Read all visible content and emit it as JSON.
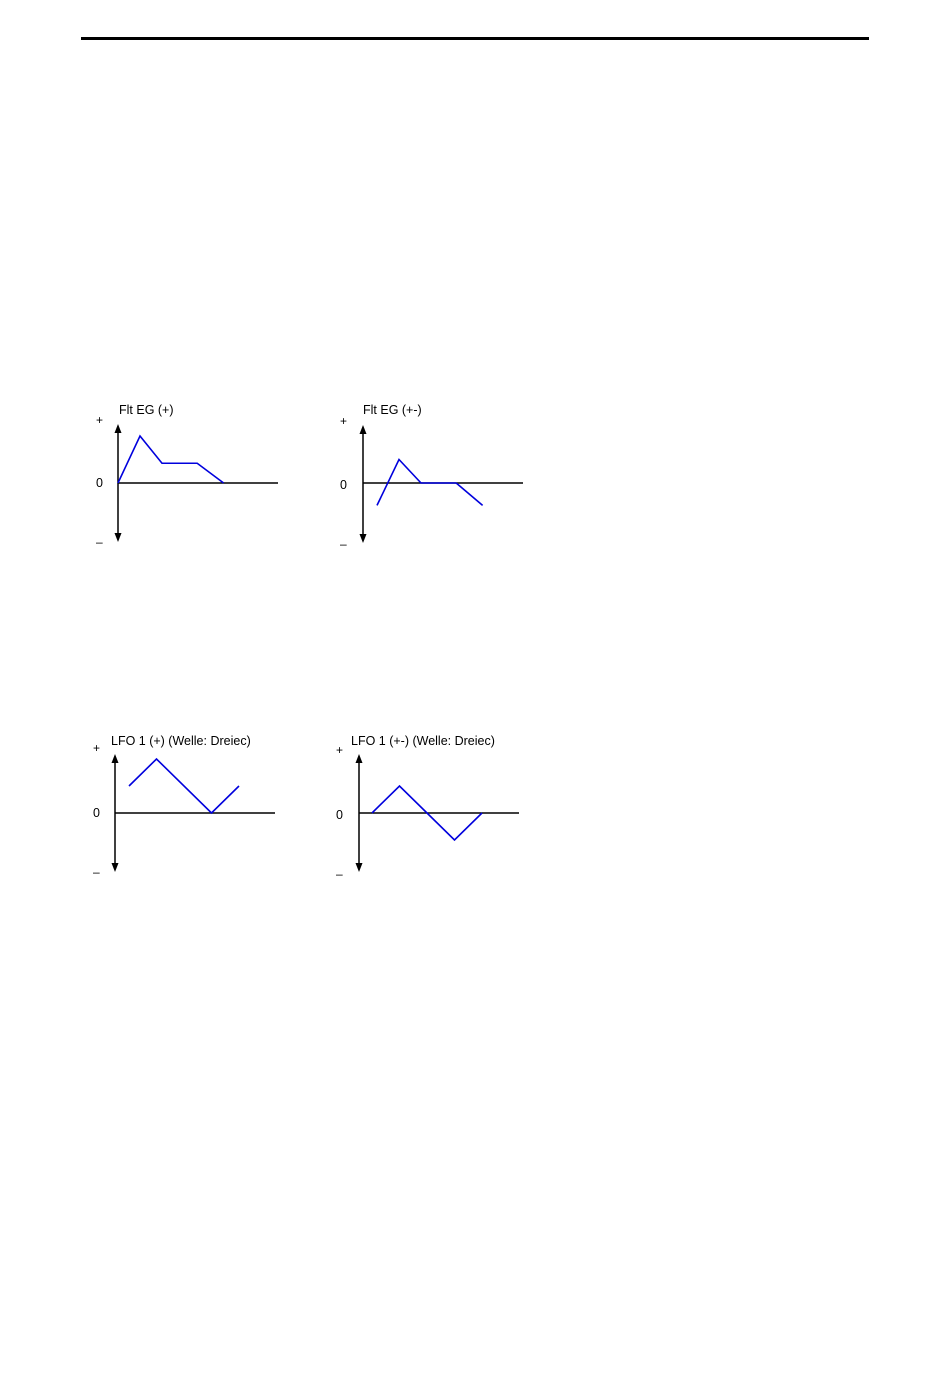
{
  "colors": {
    "waveform": "#0000dd",
    "axis": "#000000"
  },
  "axis": {
    "plus": "+",
    "zero": "0",
    "minus": "–"
  },
  "diagrams": [
    {
      "id": "flt-eg-plus",
      "title": "Flt EG (+)",
      "points": [
        [
          0.0,
          0.0
        ],
        [
          0.5,
          1.0
        ],
        [
          1.0,
          0.42
        ],
        [
          1.8,
          0.42
        ],
        [
          2.4,
          0.0
        ]
      ]
    },
    {
      "id": "flt-eg-plusminus",
      "title": "Flt EG (+-)",
      "segments": [
        [
          [
            0.0,
            -0.4
          ],
          [
            0.5,
            0.42
          ],
          [
            1.0,
            0.0
          ],
          [
            1.8,
            0.0
          ]
        ],
        [
          [
            1.8,
            0.0
          ],
          [
            2.4,
            -0.4
          ]
        ]
      ]
    },
    {
      "id": "lfo1-plus",
      "title": "LFO 1 (+) (Welle: Dreiec)",
      "points": [
        [
          0.0,
          0.5
        ],
        [
          0.5,
          1.0
        ],
        [
          1.5,
          0.0
        ],
        [
          2.0,
          0.5
        ]
      ]
    },
    {
      "id": "lfo1-plusminus",
      "title": "LFO 1 (+-) (Welle: Dreiec)",
      "points": [
        [
          0.0,
          0.0
        ],
        [
          0.5,
          0.5
        ],
        [
          1.0,
          0.0
        ],
        [
          1.5,
          -0.5
        ],
        [
          2.0,
          0.0
        ]
      ]
    }
  ]
}
